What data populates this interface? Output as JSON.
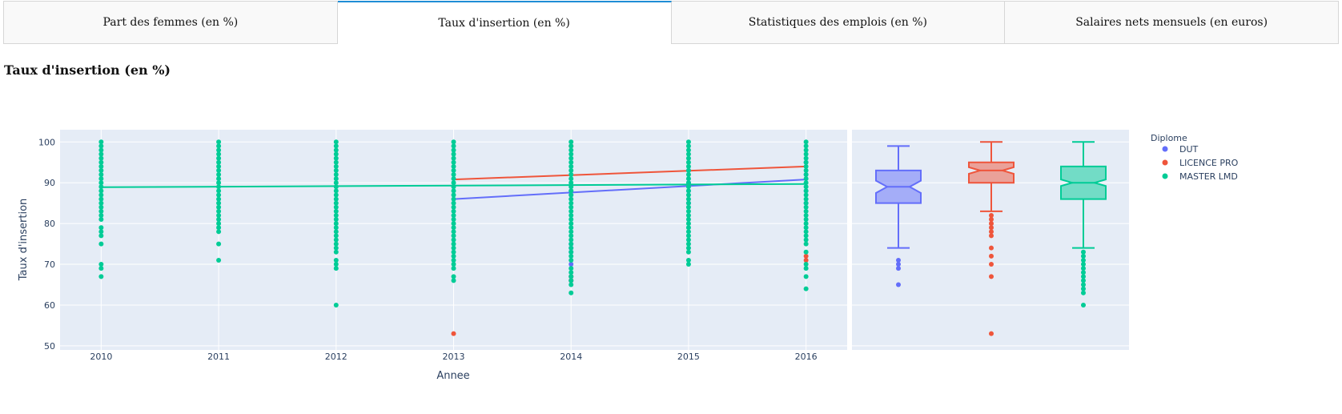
{
  "tabs": [
    {
      "label": "Part des femmes (en %)",
      "active": false
    },
    {
      "label": "Taux d'insertion (en %)",
      "active": true
    },
    {
      "label": "Statistiques des emplois (en %)",
      "active": false
    },
    {
      "label": "Salaires nets mensuels (en euros)",
      "active": false
    }
  ],
  "section_title": "Taux d'insertion (en %)",
  "chart_data": {
    "type": "scatter",
    "xlabel": "Annee",
    "ylabel": "Taux d'insertion",
    "x_ticks": [
      "2010",
      "2011",
      "2012",
      "2013",
      "2014",
      "2015",
      "2016"
    ],
    "y_ticks": [
      50,
      60,
      70,
      80,
      90,
      100
    ],
    "ylim": [
      49,
      103
    ],
    "xlim": [
      2009.65,
      2016.35
    ],
    "grid": true,
    "legend_title": "Diplome",
    "legend_position": "top-right",
    "series": [
      {
        "name": "DUT",
        "color": "#636efa",
        "trendline": {
          "x": [
            2013,
            2016
          ],
          "y": [
            86.0,
            90.8
          ]
        },
        "points": [
          {
            "x": 2014,
            "y": [
              88,
              87,
              75,
              74,
              73,
              70,
              67,
              66
            ]
          },
          {
            "x": 2015,
            "y": [
              85,
              88,
              90,
              93
            ]
          },
          {
            "x": 2016,
            "y": [
              85,
              88,
              92,
              95
            ]
          }
        ],
        "box": {
          "q1": 85,
          "median": 89,
          "q3": 93,
          "lowerfence": 74,
          "upperfence": 99,
          "notch_low": 87.5,
          "notch_high": 90.5,
          "outliers": [
            71,
            70,
            69,
            65
          ]
        }
      },
      {
        "name": "LICENCE PRO",
        "color": "#ef553b",
        "trendline": {
          "x": [
            2013,
            2016
          ],
          "y": [
            90.8,
            94.0
          ]
        },
        "points": [
          {
            "x": 2013,
            "y": [
              53
            ]
          },
          {
            "x": 2014,
            "y": [
              99,
              67,
              66
            ]
          },
          {
            "x": 2016,
            "y": [
              72,
              71
            ]
          }
        ],
        "box": {
          "q1": 90,
          "median": 93,
          "q3": 95,
          "lowerfence": 83,
          "upperfence": 100,
          "notch_low": 92.2,
          "notch_high": 93.8,
          "outliers": [
            82,
            81,
            80,
            79,
            78,
            77,
            74,
            72,
            70,
            67,
            53
          ]
        }
      },
      {
        "name": "MASTER LMD",
        "color": "#00cc96",
        "trendline": {
          "x": [
            2010,
            2016
          ],
          "y": [
            88.9,
            89.7
          ]
        },
        "points": [
          {
            "x": 2010,
            "y": [
              100,
              99,
              98,
              97,
              96,
              95,
              94,
              93,
              92,
              91,
              90,
              89,
              88,
              87,
              86,
              85,
              84,
              83,
              82,
              81,
              79,
              78,
              77,
              75,
              70,
              69,
              67
            ]
          },
          {
            "x": 2011,
            "y": [
              100,
              99,
              98,
              97,
              96,
              95,
              94,
              93,
              92,
              91,
              90,
              89,
              88,
              87,
              86,
              85,
              84,
              83,
              82,
              81,
              80,
              79,
              78,
              75,
              71
            ]
          },
          {
            "x": 2012,
            "y": [
              100,
              99,
              98,
              97,
              96,
              95,
              94,
              93,
              92,
              91,
              90,
              89,
              88,
              87,
              86,
              85,
              84,
              83,
              82,
              81,
              80,
              79,
              78,
              77,
              76,
              75,
              74,
              73,
              71,
              70,
              69,
              60
            ]
          },
          {
            "x": 2013,
            "y": [
              100,
              99,
              98,
              97,
              96,
              95,
              94,
              93,
              92,
              91,
              90,
              89,
              88,
              87,
              86,
              85,
              84,
              83,
              82,
              81,
              80,
              79,
              78,
              77,
              76,
              75,
              74,
              73,
              72,
              71,
              70,
              69,
              67,
              66
            ]
          },
          {
            "x": 2014,
            "y": [
              100,
              99,
              98,
              97,
              96,
              95,
              94,
              93,
              92,
              91,
              90,
              89,
              88,
              87,
              86,
              85,
              84,
              83,
              82,
              81,
              80,
              79,
              78,
              77,
              76,
              75,
              74,
              73,
              72,
              71,
              69,
              68,
              67,
              66,
              65,
              63
            ]
          },
          {
            "x": 2015,
            "y": [
              100,
              99,
              98,
              97,
              96,
              95,
              94,
              93,
              92,
              91,
              90,
              89,
              88,
              87,
              86,
              85,
              84,
              83,
              82,
              81,
              80,
              79,
              78,
              77,
              76,
              75,
              74,
              73,
              71,
              70
            ]
          },
          {
            "x": 2016,
            "y": [
              100,
              99,
              98,
              97,
              96,
              95,
              94,
              93,
              92,
              91,
              90,
              89,
              88,
              87,
              86,
              85,
              84,
              83,
              82,
              81,
              80,
              79,
              78,
              77,
              76,
              75,
              73,
              70,
              69,
              67,
              64
            ]
          }
        ],
        "box": {
          "q1": 86,
          "median": 90,
          "q3": 94,
          "lowerfence": 74,
          "upperfence": 100,
          "notch_low": 89.2,
          "notch_high": 90.8,
          "outliers": [
            73,
            72,
            71,
            70,
            69,
            68,
            67,
            66,
            65,
            64,
            63,
            60
          ]
        }
      }
    ]
  }
}
